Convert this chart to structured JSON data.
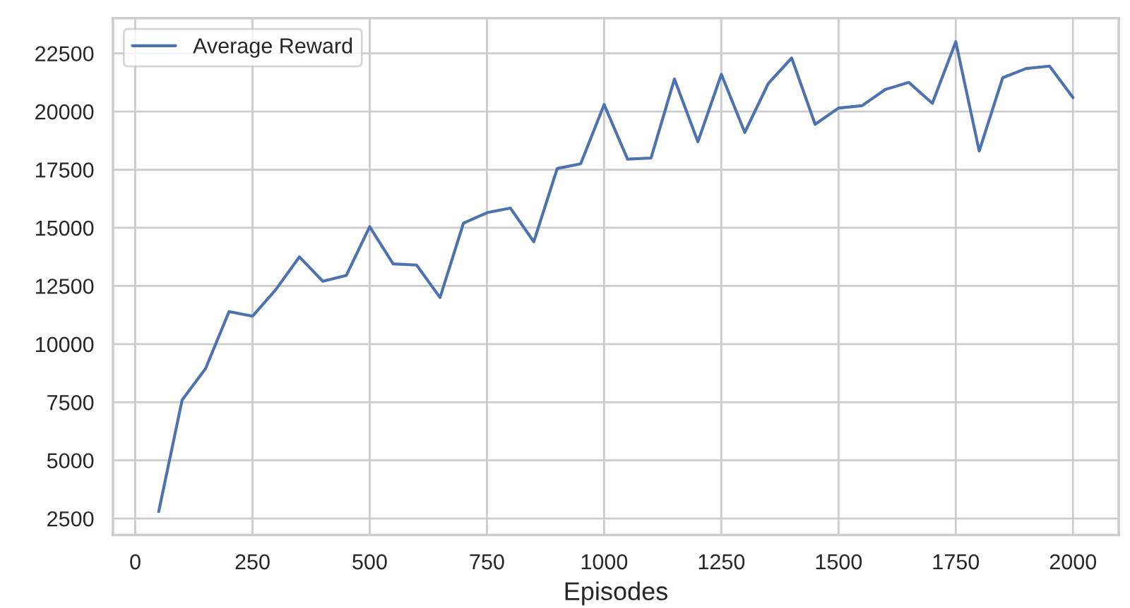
{
  "chart_data": {
    "type": "line",
    "xlabel": "Episodes",
    "x": [
      50,
      100,
      150,
      200,
      250,
      300,
      350,
      400,
      450,
      500,
      550,
      600,
      650,
      700,
      750,
      800,
      850,
      900,
      950,
      1000,
      1050,
      1100,
      1150,
      1200,
      1250,
      1300,
      1350,
      1400,
      1450,
      1500,
      1550,
      1600,
      1650,
      1700,
      1750,
      1800,
      1850,
      1900,
      1950,
      2000
    ],
    "series": [
      {
        "name": "Average Reward",
        "color": "#4c72b0",
        "values": [
          2800,
          7600,
          8950,
          11400,
          11200,
          12350,
          13750,
          12700,
          12950,
          15050,
          13450,
          13400,
          12000,
          15200,
          15650,
          15850,
          14400,
          17550,
          17750,
          20300,
          17950,
          18000,
          21400,
          18700,
          21600,
          19100,
          21200,
          22300,
          19450,
          20150,
          20250,
          20950,
          21250,
          20350,
          23000,
          18300,
          21450,
          21850,
          21950,
          20600
        ]
      }
    ],
    "xlim": [
      -47.5,
      2097.5
    ],
    "ylim": [
      1790,
      24010
    ],
    "xticks": [
      0,
      250,
      500,
      750,
      1000,
      1250,
      1500,
      1750,
      2000
    ],
    "yticks": [
      2500,
      5000,
      7500,
      10000,
      12500,
      15000,
      17500,
      20000,
      22500
    ],
    "grid": true,
    "legend": "top left",
    "marker": "none",
    "line_style": "solid"
  }
}
